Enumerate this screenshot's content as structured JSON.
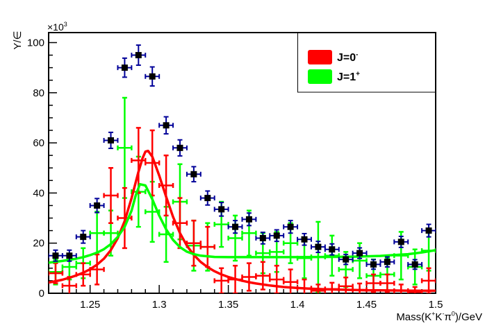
{
  "figure": {
    "background": "#ffffff",
    "frame_color": "#000000"
  },
  "y_axis": {
    "title": "Y/∈",
    "offset_label": {
      "base": "×10",
      "exp": "3"
    },
    "tick_labels": [
      "0",
      "20",
      "40",
      "60",
      "80",
      "100"
    ],
    "tick_values": [
      0,
      20,
      40,
      60,
      80,
      100
    ],
    "minor_step": 5,
    "range": [
      0,
      104
    ]
  },
  "x_axis": {
    "title_parts": [
      {
        "t": "Mass(K"
      },
      {
        "t": "+",
        "sup": 1
      },
      {
        "t": "K"
      },
      {
        "t": "-",
        "sup": 1
      },
      {
        "t": "π"
      },
      {
        "t": "0",
        "sup": 1
      },
      {
        "t": ")/GeV"
      }
    ],
    "tick_labels": [
      "1.25",
      "1.3",
      "1.35",
      "1.4",
      "1.45",
      "1.5"
    ],
    "tick_values": [
      1.25,
      1.3,
      1.35,
      1.4,
      1.45,
      1.5
    ],
    "minor_step": 0.01,
    "range": [
      1.22,
      1.5
    ]
  },
  "legend": {
    "border_color": "#000000",
    "fill": "#ffffff",
    "entries": [
      {
        "parts": [
          {
            "t": "J=0"
          },
          {
            "t": "-",
            "sup": 1
          }
        ],
        "color": "#ff0000",
        "name": "legend-entry-j0"
      },
      {
        "parts": [
          {
            "t": "J=1"
          },
          {
            "t": "+",
            "sup": 1
          }
        ],
        "color": "#00ff00",
        "name": "legend-entry-j1"
      }
    ]
  },
  "colors": {
    "data_marker": "#000000",
    "data_error": "#000099",
    "j0": "#ff0000",
    "j1": "#00ff00"
  },
  "chart_data": {
    "type": "scatter",
    "title": "",
    "xlabel": "Mass(K+ K- pi0)/GeV",
    "ylabel": "Y/epsilon (x10^3)",
    "xlim": [
      1.22,
      1.5
    ],
    "ylim": [
      0,
      104
    ],
    "bin_width": 0.01,
    "grid": false,
    "legend_position": "top-right",
    "series": [
      {
        "name": "data-points",
        "style": "black squares with navy error bars",
        "xerr": 0.005,
        "x": [
          1.225,
          1.235,
          1.245,
          1.255,
          1.265,
          1.275,
          1.285,
          1.295,
          1.305,
          1.315,
          1.325,
          1.335,
          1.345,
          1.355,
          1.365,
          1.375,
          1.385,
          1.395,
          1.405,
          1.415,
          1.425,
          1.435,
          1.445,
          1.455,
          1.465,
          1.475,
          1.485,
          1.495
        ],
        "y": [
          15,
          15,
          22.5,
          35,
          61,
          90,
          95,
          86.5,
          67,
          58,
          47.5,
          38,
          33.5,
          26.5,
          29.5,
          22,
          23,
          26.5,
          21.5,
          18.5,
          17.5,
          13.5,
          16,
          11.5,
          12.5,
          20.5,
          11.5,
          25
        ],
        "yerr": [
          2.2,
          2.2,
          2.5,
          2.8,
          3.2,
          3.8,
          4,
          3.8,
          3.4,
          3.2,
          3,
          2.8,
          2.7,
          2.5,
          2.5,
          2.3,
          2.3,
          2.5,
          2.3,
          2.2,
          2.2,
          2,
          2.1,
          1.9,
          2,
          2.2,
          1.9,
          2.5
        ]
      },
      {
        "name": "j0-yield-points",
        "style": "red crosses",
        "xerr": 0.005,
        "x": [
          1.225,
          1.235,
          1.245,
          1.255,
          1.265,
          1.275,
          1.285,
          1.295,
          1.305,
          1.315,
          1.325,
          1.335,
          1.345,
          1.355,
          1.365,
          1.375,
          1.385,
          1.395,
          1.405,
          1.415,
          1.425,
          1.435,
          1.445,
          1.455,
          1.465,
          1.475,
          1.485,
          1.495
        ],
        "y": [
          8,
          3,
          7.5,
          9.5,
          39,
          30,
          53,
          52,
          43,
          28,
          20,
          18.5,
          5,
          5.5,
          6.5,
          7,
          5.5,
          4.5,
          2,
          1,
          1.7,
          2.8,
          1.4,
          4,
          4,
          1,
          0.5,
          5
        ],
        "yerr": [
          4,
          3.5,
          4.5,
          6,
          11,
          12,
          13,
          13,
          12,
          10,
          9,
          8,
          5,
          5.5,
          5.5,
          5.5,
          5.5,
          5,
          3.5,
          2.5,
          2.5,
          3.5,
          2.5,
          3.5,
          3.5,
          2.5,
          2,
          5
        ]
      },
      {
        "name": "j1-yield-points",
        "style": "green crosses",
        "xerr": 0.005,
        "x": [
          1.225,
          1.235,
          1.245,
          1.255,
          1.265,
          1.275,
          1.285,
          1.295,
          1.305,
          1.315,
          1.325,
          1.335,
          1.345,
          1.355,
          1.365,
          1.375,
          1.385,
          1.395,
          1.405,
          1.415,
          1.425,
          1.435,
          1.445,
          1.455,
          1.465,
          1.475,
          1.485,
          1.495
        ],
        "y": [
          8.5,
          10.5,
          12,
          24,
          24,
          58,
          40.5,
          32.5,
          23.5,
          36.5,
          19,
          18.5,
          27.5,
          22,
          24,
          16,
          16.5,
          20,
          14,
          14.5,
          15,
          9.5,
          13,
          7,
          7.5,
          15,
          10.5,
          17
        ],
        "yerr": [
          5,
          5,
          6,
          8.5,
          9,
          20,
          14,
          12,
          11,
          15,
          10,
          9.5,
          9,
          9,
          9,
          8,
          8,
          8,
          8,
          14,
          8,
          7,
          7,
          6.5,
          6.5,
          9.5,
          7,
          8
        ]
      },
      {
        "name": "j0-fit-curve",
        "type": "line",
        "x": [
          1.22,
          1.225,
          1.23,
          1.235,
          1.24,
          1.245,
          1.25,
          1.255,
          1.26,
          1.265,
          1.27,
          1.275,
          1.28,
          1.285,
          1.288,
          1.29,
          1.292,
          1.295,
          1.3,
          1.305,
          1.31,
          1.315,
          1.32,
          1.325,
          1.33,
          1.335,
          1.34,
          1.345,
          1.35,
          1.355,
          1.36,
          1.365,
          1.37,
          1.375,
          1.38,
          1.39,
          1.4,
          1.41,
          1.42,
          1.43,
          1.44,
          1.45,
          1.46,
          1.47,
          1.48,
          1.49,
          1.5
        ],
        "y": [
          4.3,
          4.8,
          5.4,
          6.2,
          7.1,
          8.2,
          9.6,
          11.4,
          13.8,
          17.2,
          22,
          28.8,
          38,
          48.5,
          54,
          56.5,
          56.8,
          54.5,
          47,
          38.5,
          30.5,
          24,
          19,
          15.3,
          12.5,
          10.4,
          8.8,
          7.5,
          6.5,
          5.7,
          5,
          4.4,
          3.9,
          3.5,
          3.1,
          2.5,
          2.1,
          1.8,
          1.6,
          1.45,
          1.3,
          1.2,
          1.15,
          1.1,
          1.05,
          1,
          1
        ]
      },
      {
        "name": "j1-fit-curve",
        "type": "line",
        "x": [
          1.22,
          1.23,
          1.24,
          1.245,
          1.25,
          1.255,
          1.26,
          1.265,
          1.27,
          1.275,
          1.28,
          1.283,
          1.286,
          1.29,
          1.295,
          1.3,
          1.305,
          1.31,
          1.315,
          1.32,
          1.325,
          1.33,
          1.34,
          1.35,
          1.36,
          1.38,
          1.4,
          1.42,
          1.44,
          1.46,
          1.48,
          1.49,
          1.5
        ],
        "y": [
          12.2,
          12.9,
          13.8,
          14.4,
          15.2,
          16.2,
          17.6,
          19.6,
          22.5,
          26.5,
          33,
          39,
          43.5,
          43,
          37.5,
          31,
          25.5,
          21.3,
          18.4,
          16.6,
          15.6,
          15,
          14.5,
          14.4,
          14.4,
          14.4,
          14.4,
          14.5,
          14.6,
          14.9,
          15.6,
          16.3,
          17.2
        ]
      }
    ]
  }
}
